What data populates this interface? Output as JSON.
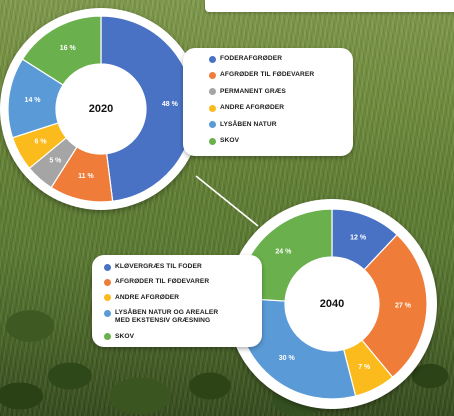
{
  "chart_data": [
    {
      "type": "pie",
      "center_label": "2020",
      "categories": [
        "FODERAFGRØDER",
        "AFGRØDER TIL FØDEVARER",
        "PERMANENT GRÆS",
        "ANDRE AFGRØDER",
        "LYSÅBEN NATUR",
        "SKOV"
      ],
      "values": [
        48,
        11,
        5,
        6,
        14,
        16
      ],
      "labels": [
        "48 %",
        "11 %",
        "5 %",
        "6 %",
        "14 %",
        "16 %"
      ],
      "colors": [
        "#4a72c4",
        "#f07c3a",
        "#a5a5a5",
        "#fbbb1d",
        "#5a9bd7",
        "#6ab04c"
      ],
      "legend_placement": "right"
    },
    {
      "type": "pie",
      "center_label": "2040",
      "categories": [
        "KLØVERGRÆS TIL FODER",
        "AFGRØDER TIL FØDEVARER",
        "ANDRE AFGRØDER",
        "LYSÅBEN NATUR OG AREALER MED EKSTENSIV GRÆSNING",
        "SKOV"
      ],
      "legend_lines": [
        [
          "KLØVERGRÆS TIL FODER"
        ],
        [
          "AFGRØDER TIL FØDEVARER"
        ],
        [
          "ANDRE AFGRØDER"
        ],
        [
          "LYSÅBEN NATUR OG AREALER",
          "MED EKSTENSIV GRÆSNING"
        ],
        [
          "SKOV"
        ]
      ],
      "values": [
        12,
        27,
        7,
        30,
        24
      ],
      "labels": [
        "12 %",
        "27 %",
        "7 %",
        "30 %",
        "24 %"
      ],
      "colors": [
        "#4a72c4",
        "#f07c3a",
        "#fbbb1d",
        "#5a9bd7",
        "#6ab04c"
      ],
      "legend_placement": "left"
    }
  ]
}
